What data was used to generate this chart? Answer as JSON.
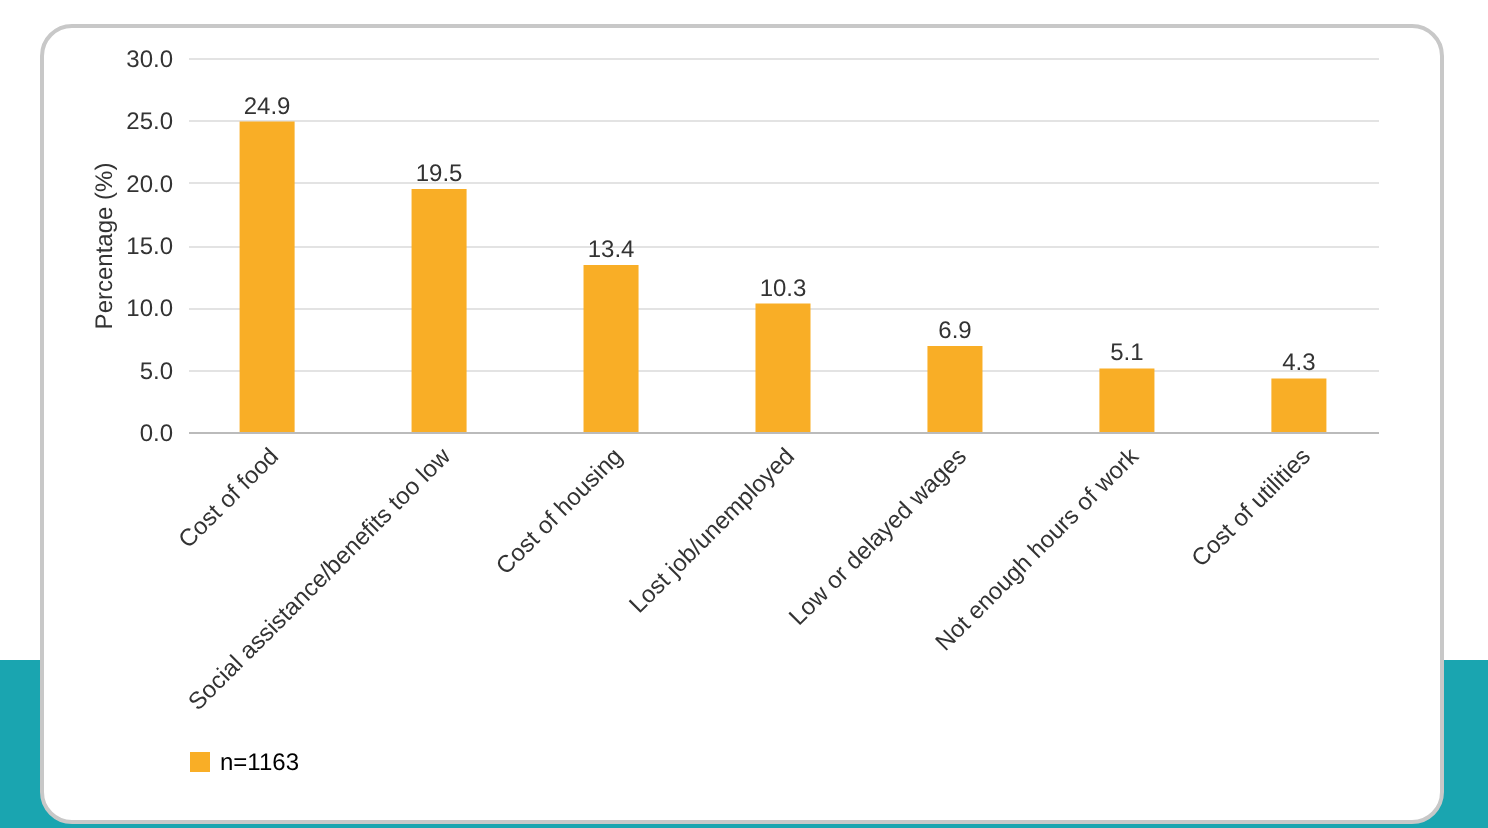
{
  "chart_data": {
    "type": "bar",
    "ylabel": "Percentage (%)",
    "categories": [
      "Cost of food",
      "Social assistance/benefits too low",
      "Cost of housing",
      "Lost job/unemployed",
      "Low or delayed wages",
      "Not enough hours of work",
      "Cost of utilities"
    ],
    "series": [
      {
        "name": "n=1163",
        "color": "#f9ae26",
        "values": [
          24.9,
          19.5,
          13.4,
          10.3,
          6.9,
          5.1,
          4.3
        ]
      }
    ],
    "ylim": [
      0,
      30
    ],
    "yticks": [
      {
        "value": 0,
        "label": "0.0"
      },
      {
        "value": 5,
        "label": "5.0"
      },
      {
        "value": 10,
        "label": "10.0"
      },
      {
        "value": 15,
        "label": "15.0"
      },
      {
        "value": 20,
        "label": "20.0"
      },
      {
        "value": 25,
        "label": "25.0"
      },
      {
        "value": 30,
        "label": "30.0"
      }
    ],
    "grid": "y",
    "legend": "bottom",
    "data_labels": true
  }
}
